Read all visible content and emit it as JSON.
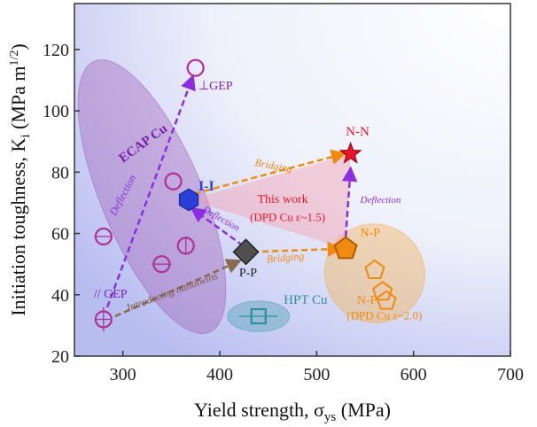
{
  "chart_data": {
    "type": "scatter",
    "title": "",
    "xlabel": "Yield strength, σ",
    "xlabel_sub": "ys",
    "xlabel_unit": " (MPa)",
    "ylabel": "Initiation toughness, K",
    "ylabel_sub": "i",
    "ylabel_unit": " (MPa m",
    "ylabel_unit_sup": "1/2",
    "ylabel_unit_end": ")",
    "xlim": [
      250,
      700
    ],
    "ylim": [
      20,
      135
    ],
    "xticks": [
      300,
      400,
      500,
      600,
      700
    ],
    "yticks": [
      20,
      40,
      60,
      80,
      100,
      120
    ],
    "grid": false,
    "colors": {
      "ecap": "#b0309c",
      "hpt": "#2f8f9a",
      "ii": "#2a3fd8",
      "pp": "#505050",
      "np": "#f08a10",
      "nn": "#e8182a",
      "purple_arrow": "#8a2ee0",
      "brown_arrow": "#8a6a50",
      "orange_arrow": "#f08a10"
    },
    "series": [
      {
        "name": "ECAP Cu",
        "marker": "circle",
        "color": "#b0309c",
        "points": [
          {
            "x": 280,
            "y": 32,
            "xerr": 8,
            "yerr": 4
          },
          {
            "x": 280,
            "y": 59,
            "xerr": 8,
            "yerr": 0
          },
          {
            "x": 340,
            "y": 50,
            "xerr": 10,
            "yerr": 0
          },
          {
            "x": 352,
            "y": 77,
            "xerr": 0,
            "yerr": 0
          },
          {
            "x": 365,
            "y": 56,
            "xerr": 0,
            "yerr": 3
          },
          {
            "x": 375,
            "y": 114,
            "xerr": 0,
            "yerr": 0
          }
        ]
      },
      {
        "name": "HPT Cu",
        "marker": "square",
        "color": "#2f8f9a",
        "points": [
          {
            "x": 440,
            "y": 33,
            "xerr": 20,
            "yerr": 0
          }
        ]
      },
      {
        "name": "I-I",
        "marker": "hexagon",
        "color": "#2a3fd8",
        "points": [
          {
            "x": 368,
            "y": 71,
            "xerr": 0,
            "yerr": 0
          }
        ]
      },
      {
        "name": "P-P",
        "marker": "diamond",
        "color": "#505050",
        "points": [
          {
            "x": 427,
            "y": 54,
            "xerr": 0,
            "yerr": 0
          }
        ]
      },
      {
        "name": "N-P",
        "marker": "pentagon",
        "color": "#f08a10",
        "points": [
          {
            "x": 530,
            "y": 55,
            "xerr": 0,
            "yerr": 0
          },
          {
            "x": 560,
            "y": 48,
            "xerr": 0,
            "yerr": 0
          },
          {
            "x": 568,
            "y": 41,
            "xerr": 0,
            "yerr": 0
          },
          {
            "x": 572,
            "y": 38,
            "xerr": 0,
            "yerr": 0
          }
        ]
      },
      {
        "name": "N-N",
        "marker": "star",
        "color": "#e8182a",
        "points": [
          {
            "x": 535,
            "y": 86,
            "xerr": 0,
            "yerr": 0
          }
        ]
      }
    ],
    "regions": [
      {
        "name": "ecap-region",
        "cx": 330,
        "cy": 72,
        "rx_data": 52,
        "ry_data": 48,
        "angle": -23,
        "color": "#9a4fb0"
      },
      {
        "name": "hpt-region",
        "cx": 440,
        "cy": 33,
        "rx_data": 32,
        "ry_data": 5,
        "angle": 0,
        "color": "#3a9aa8"
      },
      {
        "name": "np-region",
        "cx": 560,
        "cy": 47,
        "rx_data": 52,
        "ry_data": 16,
        "angle": 28,
        "color": "#f5a830"
      }
    ],
    "triangle": [
      [
        368,
        71
      ],
      [
        535,
        86
      ],
      [
        530,
        55
      ]
    ],
    "arrows": [
      {
        "name": "ecap-deflection-arrow",
        "from": [
          284,
          36
        ],
        "to": [
          372,
          111
        ],
        "color": "#8a2ee0"
      },
      {
        "name": "introducing-nanotwins-arrow",
        "from": [
          292,
          33
        ],
        "to": [
          420,
          51
        ],
        "color": "#8a6a50"
      },
      {
        "name": "pp-ii-deflection-arrow",
        "from": [
          424,
          56
        ],
        "to": [
          372,
          68
        ],
        "color": "#8a2ee0"
      },
      {
        "name": "pp-np-bridging-arrow",
        "from": [
          434,
          54
        ],
        "to": [
          524,
          55
        ],
        "color": "#f08a10"
      },
      {
        "name": "ii-nn-bridging-arrow",
        "from": [
          374,
          73
        ],
        "to": [
          528,
          86
        ],
        "color": "#f08a10"
      },
      {
        "name": "np-nn-deflection-arrow",
        "from": [
          530,
          59
        ],
        "to": [
          535,
          81
        ],
        "color": "#8a2ee0"
      }
    ],
    "annotations": [
      {
        "name": "ecap-cu-label",
        "text": "ECAP Cu",
        "x": 300,
        "y": 83,
        "color": "#7a1fb0",
        "size": 15,
        "rotate": -36,
        "italic": false,
        "bold": true,
        "anchor": "start"
      },
      {
        "name": "perp-gep-label",
        "text": "⊥GEP",
        "x": 378,
        "y": 107,
        "color": "#7a1fb0",
        "size": 14,
        "rotate": 0,
        "italic": false,
        "bold": false,
        "anchor": "start"
      },
      {
        "name": "parallel-gep-label",
        "text": "// GEP",
        "x": 270,
        "y": 39,
        "color": "#7a1fb0",
        "size": 14,
        "rotate": 0,
        "italic": false,
        "bold": false,
        "anchor": "start"
      },
      {
        "name": "deflection-label-ecap",
        "text": "Deflection",
        "x": 303,
        "y": 72,
        "color": "#8a2ee0",
        "size": 12,
        "rotate": -62,
        "italic": true,
        "bold": false,
        "anchor": "middle"
      },
      {
        "name": "introducing-nanotwins-label",
        "text": "Introducing nanotwins",
        "x": 352,
        "y": 40,
        "color": "#7a5a40",
        "size": 12,
        "rotate": -20,
        "italic": true,
        "bold": false,
        "anchor": "middle"
      },
      {
        "name": "ii-label",
        "text": "I-I",
        "x": 378,
        "y": 74,
        "color": "#2a3fd8",
        "size": 16,
        "rotate": 0,
        "italic": false,
        "bold": true,
        "anchor": "start"
      },
      {
        "name": "pp-label",
        "text": "P-P",
        "x": 420,
        "y": 46,
        "color": "#222222",
        "size": 14,
        "rotate": 0,
        "italic": false,
        "bold": false,
        "anchor": "start"
      },
      {
        "name": "nn-label",
        "text": "N-N",
        "x": 530,
        "y": 92,
        "color": "#e8182a",
        "size": 15,
        "rotate": 0,
        "italic": false,
        "bold": false,
        "anchor": "start"
      },
      {
        "name": "np-label",
        "text": "N-P",
        "x": 545,
        "y": 59,
        "color": "#f08a10",
        "size": 14,
        "rotate": 0,
        "italic": false,
        "bold": false,
        "anchor": "start"
      },
      {
        "name": "this-work-label",
        "text": "This work",
        "x": 465,
        "y": 70,
        "color": "#e8182a",
        "size": 14,
        "rotate": 0,
        "italic": false,
        "bold": false,
        "anchor": "middle"
      },
      {
        "name": "dpd-cu-15-label",
        "text": "(DPD Cu ε~1.5)",
        "x": 470,
        "y": 64,
        "color": "#e8182a",
        "size": 13,
        "rotate": 0,
        "italic": false,
        "bold": false,
        "anchor": "middle"
      },
      {
        "name": "bridging-label-top",
        "text": "Bridging",
        "x": 455,
        "y": 81,
        "color": "#f08a10",
        "size": 12,
        "rotate": 10,
        "italic": true,
        "bold": false,
        "anchor": "middle"
      },
      {
        "name": "bridging-label-bottom",
        "text": "Bridging",
        "x": 468,
        "y": 51,
        "color": "#f08a10",
        "size": 12,
        "rotate": -5,
        "italic": true,
        "bold": false,
        "anchor": "middle"
      },
      {
        "name": "deflection-label-pp",
        "text": "Deflection",
        "x": 400,
        "y": 64,
        "color": "#8a2ee0",
        "size": 11,
        "rotate": 30,
        "italic": true,
        "bold": false,
        "anchor": "middle"
      },
      {
        "name": "deflection-label-np",
        "text": "Deflection",
        "x": 545,
        "y": 70,
        "color": "#8a2ee0",
        "size": 11,
        "rotate": 0,
        "italic": true,
        "bold": false,
        "anchor": "start"
      },
      {
        "name": "hpt-cu-label",
        "text": "HPT Cu",
        "x": 466,
        "y": 37,
        "color": "#2f8f9a",
        "size": 15,
        "rotate": 0,
        "italic": false,
        "bold": false,
        "anchor": "start"
      },
      {
        "name": "np-label-2",
        "text": "N-P",
        "x": 552,
        "y": 37,
        "color": "#f08a10",
        "size": 14,
        "rotate": 0,
        "italic": false,
        "bold": false,
        "anchor": "middle"
      },
      {
        "name": "dpd-cu-20-label",
        "text": "(DPD Cu ε~2.0)",
        "x": 570,
        "y": 32,
        "color": "#f08a10",
        "size": 13,
        "rotate": 0,
        "italic": false,
        "bold": false,
        "anchor": "middle"
      }
    ]
  }
}
